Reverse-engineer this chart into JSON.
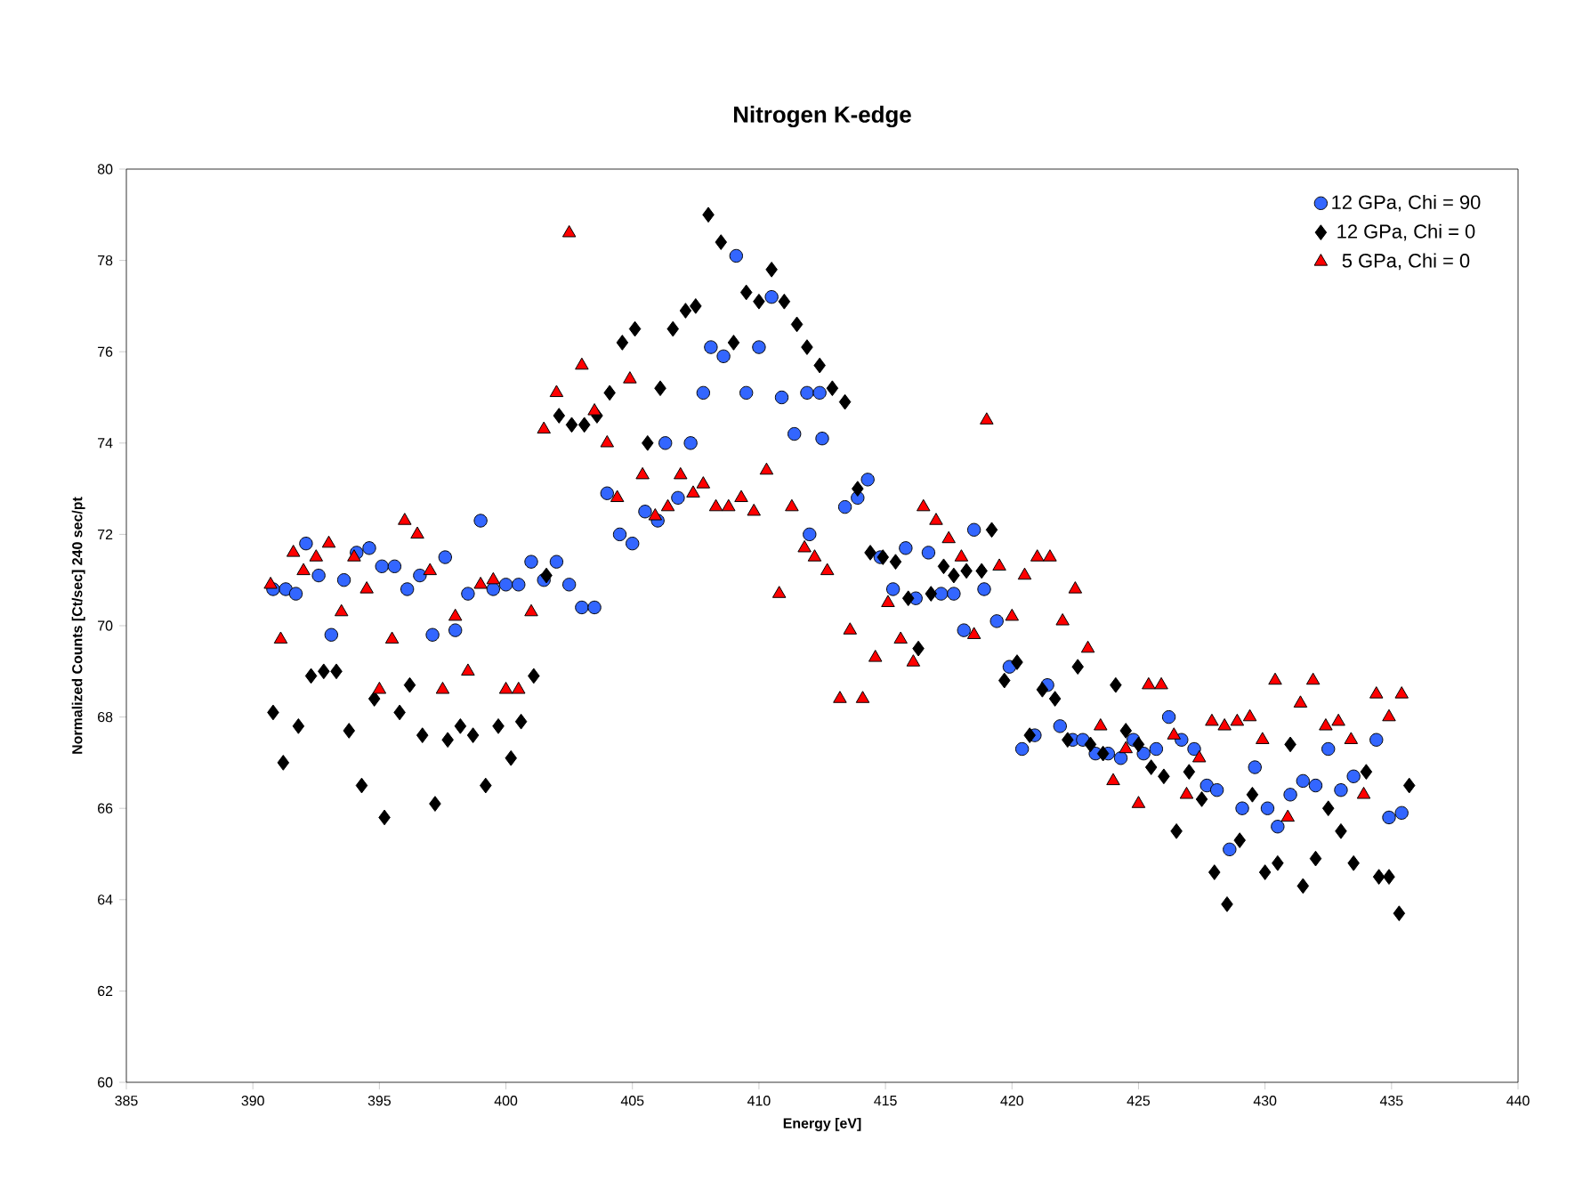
{
  "chart_data": {
    "type": "scatter",
    "title": "Nitrogen K-edge",
    "xlabel": "Energy [eV]",
    "ylabel": "Normalized Counts [Ct/sec] 240 sec/pt",
    "xlim": [
      385,
      440
    ],
    "xticks": [
      385,
      390,
      395,
      400,
      405,
      410,
      415,
      420,
      425,
      430,
      435,
      440
    ],
    "ylim": [
      60,
      80
    ],
    "yticks": [
      60,
      62,
      64,
      66,
      68,
      70,
      72,
      74,
      76,
      78,
      80
    ],
    "grid": false,
    "legend": "top right",
    "series": [
      {
        "name": "12 GPa, Chi = 90",
        "color": "#3366ff",
        "marker": "circle",
        "x": [
          390.8,
          391.3,
          391.7,
          392.1,
          392.6,
          393.1,
          393.6,
          394.1,
          394.6,
          395.1,
          395.6,
          396.1,
          396.6,
          397.1,
          397.6,
          398.0,
          398.5,
          399.0,
          399.5,
          400.0,
          400.5,
          401.0,
          401.5,
          402.0,
          402.5,
          403.0,
          403.5,
          404.0,
          404.5,
          405.0,
          405.5,
          406.0,
          406.3,
          406.8,
          407.3,
          407.8,
          408.1,
          408.6,
          409.1,
          409.5,
          410.0,
          410.5,
          410.9,
          411.4,
          411.9,
          412.4,
          412.5,
          412.0,
          413.4,
          413.9,
          414.3,
          414.8,
          415.3,
          415.8,
          416.2,
          416.7,
          417.2,
          417.7,
          418.1,
          418.5,
          418.9,
          419.4,
          419.9,
          420.4,
          420.9,
          421.4,
          421.9,
          422.4,
          422.8,
          423.3,
          423.8,
          424.3,
          424.8,
          425.2,
          425.7,
          426.2,
          426.7,
          427.2,
          427.7,
          428.1,
          428.6,
          429.1,
          429.6,
          430.1,
          430.5,
          431.0,
          431.5,
          432.0,
          432.5,
          433.0,
          433.5,
          434.4,
          434.9,
          435.4
        ],
        "values": [
          70.8,
          70.8,
          70.7,
          71.8,
          71.1,
          69.8,
          71.0,
          71.6,
          71.7,
          71.3,
          71.3,
          70.8,
          71.1,
          69.8,
          71.5,
          69.9,
          70.7,
          72.3,
          70.8,
          70.9,
          70.9,
          71.4,
          71.0,
          71.4,
          70.9,
          70.4,
          70.4,
          72.9,
          72.0,
          71.8,
          72.5,
          72.3,
          74.0,
          72.8,
          74.0,
          75.1,
          76.1,
          75.9,
          78.1,
          75.1,
          76.1,
          77.2,
          75.0,
          74.2,
          75.1,
          75.1,
          74.1,
          72.0,
          72.6,
          72.8,
          73.2,
          71.5,
          70.8,
          71.7,
          70.6,
          71.6,
          70.7,
          70.7,
          69.9,
          72.1,
          70.8,
          70.1,
          69.1,
          67.3,
          67.6,
          68.7,
          67.8,
          67.5,
          67.5,
          67.2,
          67.2,
          67.1,
          67.5,
          67.2,
          67.3,
          68.0,
          67.5,
          67.3,
          66.5,
          66.4,
          65.1,
          66.0,
          66.9,
          66.0,
          65.6,
          66.3,
          66.6,
          66.5,
          67.3,
          66.4,
          66.7,
          67.5,
          65.8,
          65.9
        ]
      },
      {
        "name": "12 GPa, Chi = 0",
        "color": "#000000",
        "marker": "diamond",
        "x": [
          390.8,
          391.2,
          391.8,
          392.3,
          392.8,
          393.3,
          393.8,
          394.3,
          394.8,
          395.2,
          395.8,
          396.2,
          396.7,
          397.2,
          397.7,
          398.2,
          398.7,
          399.2,
          399.7,
          400.2,
          400.6,
          401.1,
          401.6,
          402.1,
          402.6,
          403.1,
          403.6,
          404.1,
          404.6,
          405.1,
          405.6,
          406.1,
          406.6,
          407.1,
          407.5,
          408.0,
          408.5,
          409.0,
          409.5,
          410.0,
          410.5,
          411.0,
          411.5,
          411.9,
          412.4,
          412.9,
          413.4,
          413.9,
          414.4,
          414.9,
          415.4,
          415.9,
          416.3,
          416.8,
          417.3,
          417.7,
          418.2,
          418.8,
          419.2,
          419.7,
          420.2,
          420.7,
          421.2,
          421.7,
          422.2,
          422.6,
          423.1,
          423.6,
          424.1,
          424.5,
          425.0,
          425.5,
          426.0,
          426.5,
          427.0,
          427.5,
          428.0,
          428.5,
          429.0,
          429.5,
          430.0,
          430.5,
          431.0,
          431.5,
          432.0,
          432.5,
          433.0,
          433.5,
          434.0,
          434.5,
          434.9,
          435.3,
          435.7
        ],
        "values": [
          68.1,
          67.0,
          67.8,
          68.9,
          69.0,
          69.0,
          67.7,
          66.5,
          68.4,
          65.8,
          68.1,
          68.7,
          67.6,
          66.1,
          67.5,
          67.8,
          67.6,
          66.5,
          67.8,
          67.1,
          67.9,
          68.9,
          71.1,
          74.6,
          74.4,
          74.4,
          74.6,
          75.1,
          76.2,
          76.5,
          74.0,
          75.2,
          76.5,
          76.9,
          77.0,
          79.0,
          78.4,
          76.2,
          77.3,
          77.1,
          77.8,
          77.1,
          76.6,
          76.1,
          75.7,
          75.2,
          74.9,
          73.0,
          71.6,
          71.5,
          71.4,
          70.6,
          69.5,
          70.7,
          71.3,
          71.1,
          71.2,
          71.2,
          72.1,
          68.8,
          69.2,
          67.6,
          68.6,
          68.4,
          67.5,
          69.1,
          67.4,
          67.2,
          68.7,
          67.7,
          67.4,
          66.9,
          66.7,
          65.5,
          66.8,
          66.2,
          64.6,
          63.9,
          65.3,
          66.3,
          64.6,
          64.8,
          67.4,
          64.3,
          64.9,
          66.0,
          65.5,
          64.8,
          66.8,
          64.5,
          64.5,
          63.7,
          66.5
        ]
      },
      {
        "name": "5 GPa, Chi = 0",
        "color": "#ff0000",
        "marker": "triangle",
        "x": [
          390.7,
          391.1,
          391.6,
          392.0,
          392.5,
          393.0,
          393.5,
          394.0,
          394.5,
          395.0,
          395.5,
          396.0,
          396.5,
          397.0,
          397.5,
          398.0,
          398.5,
          399.0,
          399.5,
          400.0,
          400.5,
          401.0,
          401.5,
          402.0,
          402.5,
          403.0,
          403.5,
          404.0,
          404.4,
          404.9,
          405.4,
          405.9,
          406.4,
          406.9,
          407.4,
          407.8,
          408.3,
          408.8,
          409.3,
          409.8,
          410.3,
          410.8,
          411.3,
          411.8,
          412.2,
          412.7,
          413.2,
          413.6,
          414.1,
          414.6,
          415.1,
          415.6,
          416.1,
          416.5,
          417.0,
          417.5,
          418.0,
          418.5,
          419.0,
          419.5,
          420.0,
          420.5,
          421.0,
          421.5,
          422.0,
          422.5,
          423.0,
          423.5,
          424.0,
          424.5,
          425.0,
          425.4,
          425.9,
          426.4,
          426.9,
          427.4,
          427.9,
          428.4,
          428.9,
          429.4,
          429.9,
          430.4,
          430.9,
          431.4,
          431.9,
          432.4,
          432.9,
          433.4,
          433.9,
          434.4,
          434.9,
          435.4
        ],
        "values": [
          70.9,
          69.7,
          71.6,
          71.2,
          71.5,
          71.8,
          70.3,
          71.5,
          70.8,
          68.6,
          69.7,
          72.3,
          72.0,
          71.2,
          68.6,
          70.2,
          69.0,
          70.9,
          71.0,
          68.6,
          68.6,
          70.3,
          74.3,
          75.1,
          78.6,
          75.7,
          74.7,
          74.0,
          72.8,
          75.4,
          73.3,
          72.4,
          72.6,
          73.3,
          72.9,
          73.1,
          72.6,
          72.6,
          72.8,
          72.5,
          73.4,
          70.7,
          72.6,
          71.7,
          71.5,
          71.2,
          68.4,
          69.9,
          68.4,
          69.3,
          70.5,
          69.7,
          69.2,
          72.6,
          72.3,
          71.9,
          71.5,
          69.8,
          74.5,
          71.3,
          70.2,
          71.1,
          71.5,
          71.5,
          70.1,
          70.8,
          69.5,
          67.8,
          66.6,
          67.3,
          66.1,
          68.7,
          68.7,
          67.6,
          66.3,
          67.1,
          67.9,
          67.8,
          67.9,
          68.0,
          67.5,
          68.8,
          65.8,
          68.3,
          68.8,
          67.8,
          67.9,
          67.5,
          66.3,
          68.5,
          68.0,
          68.5
        ]
      }
    ]
  }
}
